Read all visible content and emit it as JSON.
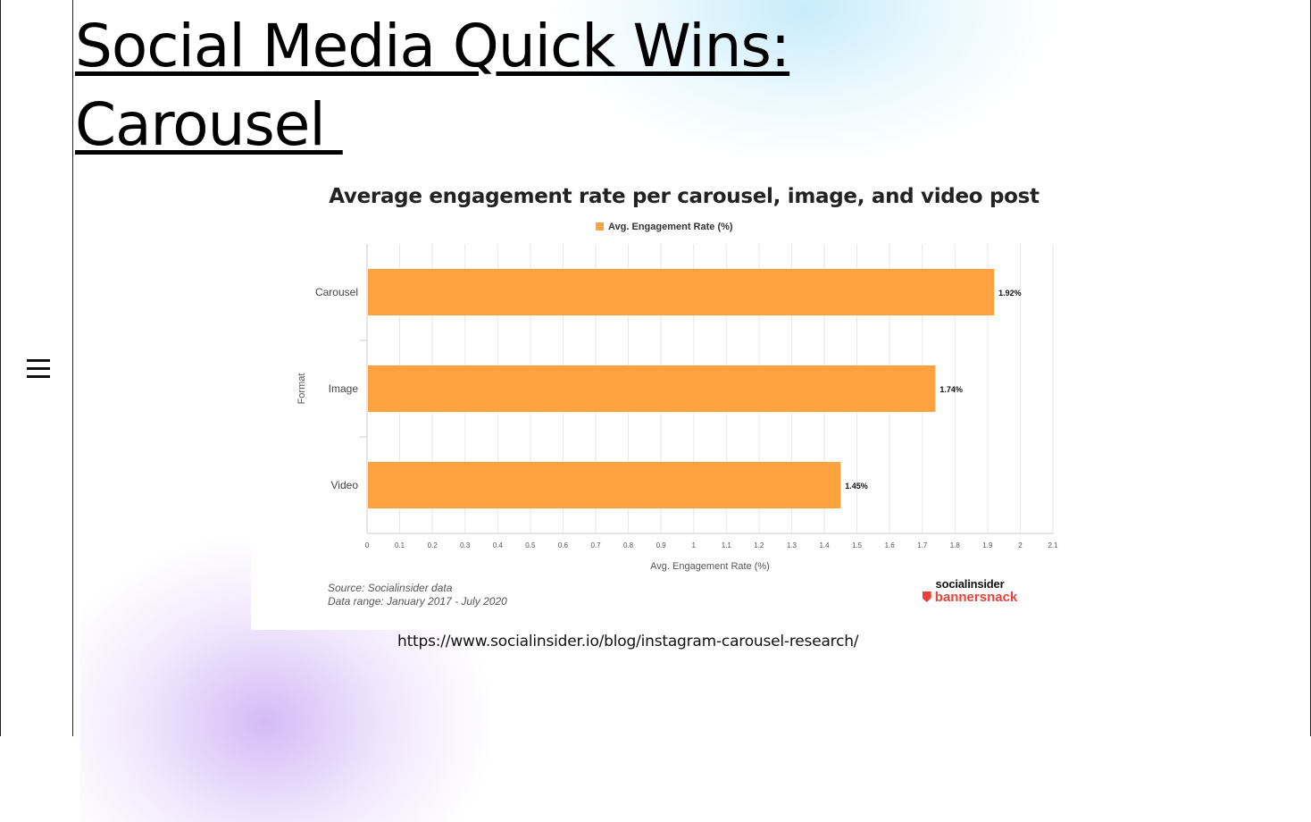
{
  "slide": {
    "title_line1": "Social Media Quick Wins:",
    "title_line2": "Carousel ",
    "url": "https://www.socialinsider.io/blog/instagram-carousel-research/"
  },
  "chart_data": {
    "type": "bar",
    "orientation": "horizontal",
    "title": "Average engagement rate per carousel, image, and video post",
    "categories": [
      "Carousel",
      "Image",
      "Video"
    ],
    "series": [
      {
        "name": "Avg. Engagement Rate (%)",
        "values": [
          1.92,
          1.74,
          1.45
        ],
        "color": "#FFA23F"
      }
    ],
    "data_labels": [
      "1.92%",
      "1.74%",
      "1.45%"
    ],
    "xlabel": "Avg. Engagement Rate (%)",
    "ylabel": "Format",
    "xlim": [
      0,
      2.1
    ],
    "xticks": [
      "0",
      "0.1",
      "0.2",
      "0.3",
      "0.4",
      "0.5",
      "0.6",
      "0.7",
      "0.8",
      "0.9",
      "1",
      "1.1",
      "1.2",
      "1.3",
      "1.4",
      "1.5",
      "1.6",
      "1.7",
      "1.8",
      "1.9",
      "2",
      "2.1"
    ],
    "grid": true,
    "legend": "top"
  },
  "footer": {
    "source_line1": "Source: Socialinsider data",
    "source_line2": "Data range: January 2017 - July 2020",
    "brand_top": "socialinsider",
    "brand_bottom": "bannersnack"
  },
  "colors": {
    "bar": "#FFA23F",
    "brand_red": "#E8423A",
    "brand_orange": "#FF9E2C"
  }
}
